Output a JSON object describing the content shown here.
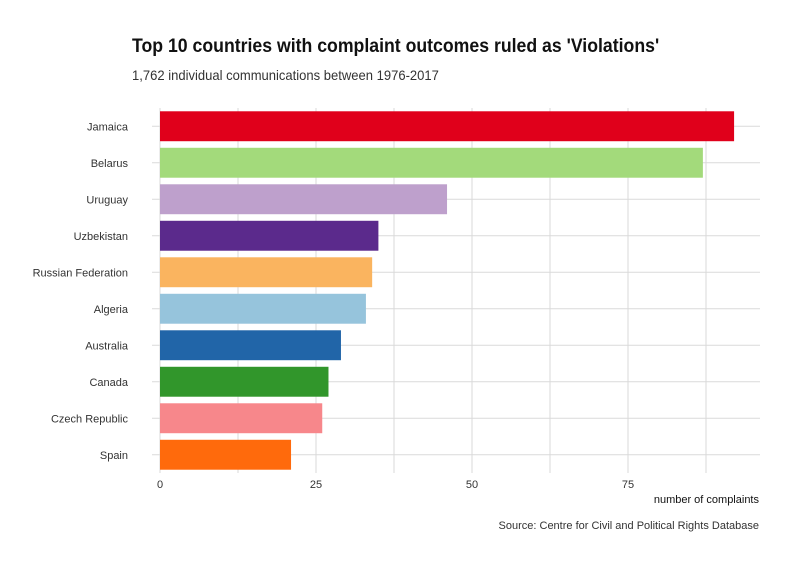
{
  "chart_data": {
    "type": "bar",
    "orientation": "horizontal",
    "title": "Top 10 countries with complaint outcomes ruled as 'Violations'",
    "subtitle": "1,762 individual communications between 1976-2017",
    "xlabel": "number of complaints",
    "ylabel": "",
    "caption": "Source: Centre for Civil and Political Rights Database",
    "categories": [
      "Jamaica",
      "Belarus",
      "Uruguay",
      "Uzbekistan",
      "Russian Federation",
      "Algeria",
      "Australia",
      "Canada",
      "Czech Republic",
      "Spain"
    ],
    "values": [
      92,
      87,
      46,
      35,
      34,
      33,
      29,
      27,
      26,
      21
    ],
    "colors": [
      "#e0001b",
      "#a3da7b",
      "#bea0cc",
      "#5b2a8c",
      "#fab45f",
      "#96c4dc",
      "#2165a8",
      "#31962b",
      "#f7878b",
      "#ff6a0c"
    ],
    "xlim": [
      0,
      96
    ],
    "xticks": [
      0,
      25,
      50,
      75
    ],
    "grid": true,
    "legend": "none"
  }
}
